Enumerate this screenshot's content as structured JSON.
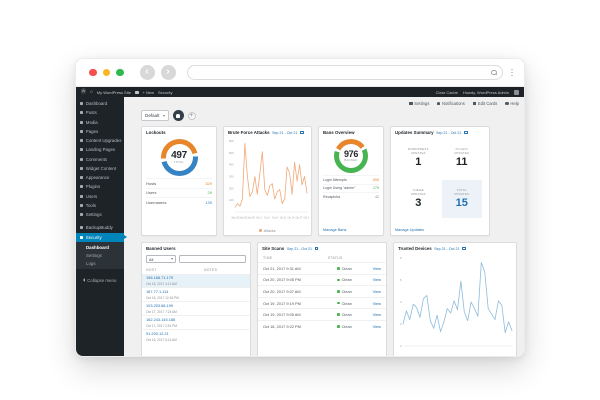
{
  "browser": {
    "traffic_lights": {
      "close": "#f5504e",
      "minimize": "#fbb624",
      "zoom": "#2fb84c"
    },
    "back_glyph": "‹",
    "forward_glyph": "›",
    "url_value": ""
  },
  "admin_bar": {
    "wp_logo_glyph": "Ⓦ",
    "home_glyph": "⌂",
    "site_name": "My WordPress Site",
    "new_label": "+ New",
    "page_label": "Security",
    "clear_cache_label": "Clear Cache",
    "howdy_label": "Howdy, WordPress Admin"
  },
  "sidebar": {
    "items": [
      {
        "id": "dashboard",
        "label": "Dashboard",
        "icon": "dashboard-icon"
      },
      {
        "id": "posts",
        "label": "Posts",
        "icon": "pin-icon"
      },
      {
        "id": "media",
        "label": "Media",
        "icon": "media-icon"
      },
      {
        "id": "pages",
        "label": "Pages",
        "icon": "pages-icon"
      },
      {
        "id": "content-upgrades",
        "label": "Content Upgrades",
        "icon": "content-upgrades-icon"
      },
      {
        "id": "landing-pages",
        "label": "Landing Pages",
        "icon": "landing-pages-icon"
      },
      {
        "id": "comments",
        "label": "Comments",
        "icon": "comments-icon"
      },
      {
        "id": "widget-content",
        "label": "Widget Content",
        "icon": "widget-content-icon"
      },
      {
        "id": "appearance",
        "label": "Appearance",
        "icon": "appearance-icon"
      },
      {
        "id": "plugins",
        "label": "Plugins",
        "icon": "plugins-icon"
      },
      {
        "id": "users",
        "label": "Users",
        "icon": "users-icon"
      },
      {
        "id": "tools",
        "label": "Tools",
        "icon": "tools-icon"
      },
      {
        "id": "settings",
        "label": "Settings",
        "icon": "settings-icon"
      },
      {
        "id": "backupbuddy",
        "label": "BackupBuddy",
        "icon": "backup-icon",
        "spaced": true
      },
      {
        "id": "security",
        "label": "Security",
        "icon": "shield-icon",
        "active": true
      }
    ],
    "submenu": [
      {
        "label": "Dashboard",
        "current": true
      },
      {
        "label": "Settings"
      },
      {
        "label": "Logs"
      }
    ],
    "collapse_label": "Collapse menu"
  },
  "screen_options": {
    "buttons": [
      {
        "id": "settings",
        "label": "Settings",
        "icon": "gear-icon"
      },
      {
        "id": "notifications",
        "label": "Notifications",
        "icon": "bell-icon"
      },
      {
        "id": "edit-cards",
        "label": "Edit Cards",
        "icon": "grid-icon"
      },
      {
        "id": "help",
        "label": "Help",
        "icon": "help-icon"
      }
    ]
  },
  "board_bar": {
    "selected_board": "Default",
    "add_glyph": "+"
  },
  "cards": {
    "lockouts": {
      "title": "Lockouts",
      "stats": [
        {
          "label": "Hosts",
          "value": 329,
          "color": "#e8862c"
        },
        {
          "label": "Users",
          "value": 29,
          "color": "#46b450"
        },
        {
          "label": "Usernames",
          "value": 139,
          "color": "#3582c4"
        }
      ]
    },
    "brute_force": {
      "title": "Brute Force Attacks",
      "date_range": "Sep 21 - Oct 21"
    },
    "bans": {
      "title": "Bans Overview",
      "stats": [
        {
          "label": "Login Attempts",
          "value": 659,
          "color": "#e8862c"
        },
        {
          "label": "Login Using \"admin\"",
          "value": 275,
          "color": "#46b450"
        },
        {
          "label": "Recaptcha",
          "value": 42,
          "color": "#8c8f94"
        }
      ],
      "manage_label": "Manage Bans"
    },
    "updates": {
      "title": "Updates Summary",
      "date_range": "Sep 21 - Oct 21",
      "cells": [
        {
          "label": "WORDPRESS\nUPDATES",
          "value": 1
        },
        {
          "label": "PLUGIN\nUPDATES",
          "value": 11
        },
        {
          "label": "THEME\nUPDATES",
          "value": 3
        },
        {
          "label": "TOTAL\nUPDATES",
          "value": 15,
          "highlight": true
        }
      ],
      "manage_label": "Manage Updates"
    },
    "banned_users": {
      "title": "Banned Users",
      "filter_value": "All",
      "search_placeholder": "",
      "columns": [
        "HOST",
        "NOTES"
      ],
      "rows": [
        {
          "host": "196.168.71.179",
          "date": "Oct 18, 2017 4:12 AM",
          "selected": true,
          "notes": ""
        },
        {
          "host": "187.77.1.114",
          "date": "Oct 18, 2017 12:18 PM",
          "notes": ""
        },
        {
          "host": "103.203.68.199",
          "date": "Oct 17, 2017 7:24 AM",
          "notes": ""
        },
        {
          "host": "162.243.145.188",
          "date": "Oct 17, 2017 2:51 PM",
          "notes": ""
        },
        {
          "host": "91.200.12.21",
          "date": "Oct 16, 2017 6:14 AM",
          "notes": ""
        }
      ]
    },
    "site_scans": {
      "title": "Site Scans",
      "date_range": "Sep 21 - Oct 21",
      "columns": [
        "TIME",
        "STATUS"
      ],
      "status_color": "#46b450",
      "view_label": "View",
      "rows": [
        {
          "time": "Oct 21, 2017 9:31 AM",
          "status": "Clean"
        },
        {
          "time": "Oct 20, 2017 9:05 PM",
          "status": "Clean"
        },
        {
          "time": "Oct 20, 2017 9:07 AM",
          "status": "Clean"
        },
        {
          "time": "Oct 19, 2017 9:19 PM",
          "status": "Clean"
        },
        {
          "time": "Oct 19, 2017 9:05 AM",
          "status": "Clean"
        },
        {
          "time": "Oct 18, 2017 9:22 PM",
          "status": "Clean"
        }
      ]
    },
    "trusted_devices": {
      "title": "Trusted Devices",
      "date_range": "Sep 21 - Oct 21"
    }
  },
  "chart_data": [
    {
      "id": "brute_force_attacks",
      "type": "line",
      "title": "Brute Force Attacks",
      "date_range": "Sep 21 - Oct 21",
      "ylim": [
        0,
        600
      ],
      "yticks": [
        100,
        200,
        300,
        400,
        500,
        600
      ],
      "xlabels": [
        "Sep 23",
        "Sep 26",
        "Sep 29",
        "Oct 2",
        "Oct 5",
        "Oct 8",
        "Oct 11",
        "Oct 14",
        "Oct 17",
        "Oct 20"
      ],
      "legend_position": "bottom",
      "grid": false,
      "series": [
        {
          "name": "Attacks",
          "color": "#f0a878",
          "values": [
            40,
            70,
            50,
            110,
            580,
            300,
            130,
            170,
            300,
            150,
            320,
            510,
            190,
            140,
            220,
            240,
            110,
            170,
            190,
            70,
            110,
            380,
            330,
            150,
            420,
            260,
            400,
            230,
            300,
            160
          ]
        }
      ]
    },
    {
      "id": "trusted_devices",
      "type": "line",
      "title": "Trusted Devices",
      "date_range": "Sep 21 - Oct 21",
      "ylim": [
        0,
        8
      ],
      "yticks": [
        0,
        2,
        4,
        6,
        8
      ],
      "xlabels": [],
      "grid": false,
      "series": [
        {
          "name": "Devices",
          "color": "#8cbcdd",
          "values": [
            2.0,
            3.2,
            2.4,
            3.8,
            3.5,
            2.6,
            4.3,
            4.6,
            2.3,
            1.6,
            2.8,
            1.3,
            2.2,
            3.4,
            3.0,
            4.1,
            3.3,
            5.9,
            3.1,
            2.3,
            4.0,
            3.4,
            2.7,
            7.6,
            6.7,
            3.4,
            2.9,
            2.4,
            4.1,
            3.7,
            1.2,
            2.2,
            1.4
          ]
        }
      ]
    },
    {
      "id": "lockouts_gauge",
      "type": "pie",
      "value": 497,
      "label": "TOTAL",
      "start_deg": 266,
      "segments": [
        {
          "name": "top",
          "color": "#e8862c",
          "pct": 47,
          "gap": 3
        },
        {
          "name": "bottom",
          "color": "#3582c4",
          "pct": 47,
          "gap": 3
        }
      ]
    },
    {
      "id": "bans_gauge",
      "type": "pie",
      "value": 976,
      "label": "BANNED",
      "start_deg": 298,
      "segments": [
        {
          "name": "top",
          "color": "#e8862c",
          "pct": 32,
          "gap": 3
        },
        {
          "name": "bottom",
          "color": "#46b450",
          "pct": 62,
          "gap": 3
        }
      ]
    }
  ]
}
